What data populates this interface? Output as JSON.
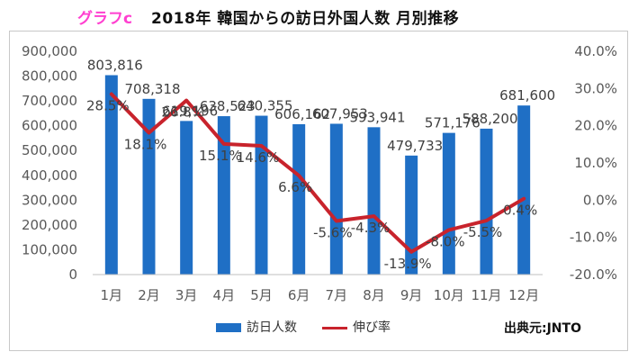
{
  "header": {
    "badge": "グラフc",
    "title": "2018年 韓国からの訪日外国人数 月別推移"
  },
  "source": "出典元:JNTO",
  "colors": {
    "bar": "#1f6fc5",
    "line": "#c8232c",
    "badge": "#ff3fd0"
  },
  "chart_data": {
    "type": "bar",
    "title": "2018年 韓国からの訪日外国人数 月別推移",
    "categories": [
      "1月",
      "2月",
      "3月",
      "4月",
      "5月",
      "6月",
      "7月",
      "8月",
      "9月",
      "10月",
      "11月",
      "12月"
    ],
    "series": [
      {
        "name": "訪日人数",
        "type": "bar",
        "axis": "left",
        "values": [
          803816,
          708318,
          619196,
          638523,
          640355,
          606162,
          607953,
          593941,
          479733,
          571176,
          588200,
          681600
        ],
        "labels": [
          "803,816",
          "708,318",
          "619,196",
          "638,523",
          "640,355",
          "606,162",
          "607,953",
          "593,941",
          "479,733",
          "571,176",
          "588,200",
          "681,600"
        ]
      },
      {
        "name": "伸び率",
        "type": "line",
        "axis": "right",
        "values": [
          28.5,
          18.1,
          26.8,
          15.1,
          14.6,
          6.6,
          -5.6,
          -4.3,
          -13.9,
          -8.0,
          -5.5,
          0.4
        ],
        "labels": [
          "28.5%",
          "18.1%",
          "26.8%",
          "15.1%",
          "14.6%",
          "6.6%",
          "-5.6%",
          "-4.3%",
          "-13.9%",
          "-8.0%",
          "-5.5%",
          "0.4%"
        ]
      }
    ],
    "y_left": {
      "min": 0,
      "max": 900000,
      "ticks": [
        "0",
        "100,000",
        "200,000",
        "300,000",
        "400,000",
        "500,000",
        "600,000",
        "700,000",
        "800,000",
        "900,000"
      ]
    },
    "y_right": {
      "min": -20,
      "max": 40,
      "ticks": [
        "-20.0%",
        "-10.0%",
        "0.0%",
        "10.0%",
        "20.0%",
        "30.0%",
        "40.0%"
      ]
    },
    "legend": "bottom",
    "grid": false
  }
}
